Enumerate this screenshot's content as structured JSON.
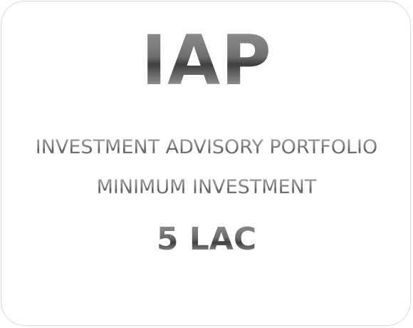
{
  "card": {
    "title": "IAP",
    "subtitle": "INVESTMENT ADVISORY PORTFOLIO",
    "minimum_label": "MINIMUM INVESTMENT",
    "amount": "5 LAC"
  },
  "colors": {
    "background": "#ffffff",
    "border": "#d9d9d9",
    "text_gradient_dark": "#404040",
    "text_gradient_light": "#cfcfcf"
  }
}
